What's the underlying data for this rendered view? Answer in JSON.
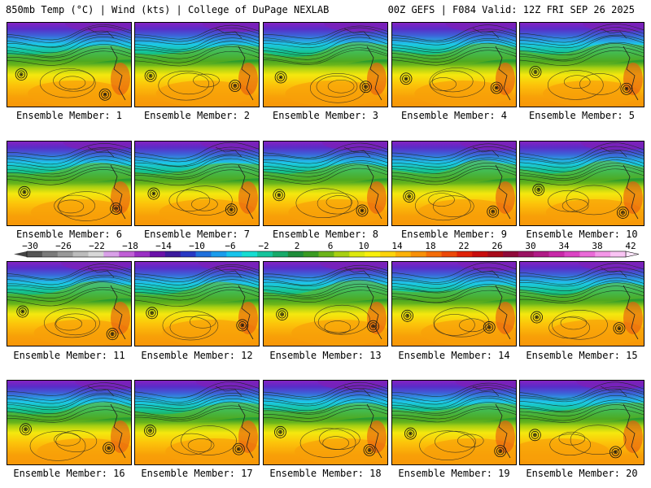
{
  "header": {
    "left": "850mb Temp (°C) | Wind (kts) | College of DuPage NEXLAB",
    "right": "00Z GEFS | F084 Valid: 12Z FRI SEP 26 2025"
  },
  "panels": [
    {
      "label": "Ensemble Member: 1"
    },
    {
      "label": "Ensemble Member: 2"
    },
    {
      "label": "Ensemble Member: 3"
    },
    {
      "label": "Ensemble Member: 4"
    },
    {
      "label": "Ensemble Member: 5"
    },
    {
      "label": "Ensemble Member: 6"
    },
    {
      "label": "Ensemble Member: 7"
    },
    {
      "label": "Ensemble Member: 8"
    },
    {
      "label": "Ensemble Member: 9"
    },
    {
      "label": "Ensemble Member: 10"
    },
    {
      "label": "Ensemble Member: 11"
    },
    {
      "label": "Ensemble Member: 12"
    },
    {
      "label": "Ensemble Member: 13"
    },
    {
      "label": "Ensemble Member: 14"
    },
    {
      "label": "Ensemble Member: 15"
    },
    {
      "label": "Ensemble Member: 16"
    },
    {
      "label": "Ensemble Member: 17"
    },
    {
      "label": "Ensemble Member: 18"
    },
    {
      "label": "Ensemble Member: 19"
    },
    {
      "label": "Ensemble Member: 20"
    }
  ],
  "colorbar": {
    "labels": [
      "−30",
      "−26",
      "−22",
      "−18",
      "−14",
      "−10",
      "−6",
      "−2",
      "2",
      "6",
      "10",
      "14",
      "18",
      "22",
      "26",
      "30",
      "34",
      "38",
      "42"
    ],
    "colors": [
      "#555555",
      "#7a7a7a",
      "#999999",
      "#bcbcbc",
      "#d8d8d8",
      "#d9a0e8",
      "#c05fd6",
      "#9a2fc4",
      "#6a10a8",
      "#3c1a9c",
      "#2838c4",
      "#1f6fdc",
      "#1a9cec",
      "#17c4ec",
      "#15ddd2",
      "#14c49c",
      "#17aa6a",
      "#1e8c3a",
      "#3a9a22",
      "#6cb419",
      "#a8d012",
      "#dde80e",
      "#f8f00b",
      "#fcd40a",
      "#fcb208",
      "#f89008",
      "#f46c08",
      "#ec4808",
      "#e02208",
      "#c80d0d",
      "#a80a1a",
      "#900a3a",
      "#9a1262",
      "#b01a86",
      "#c828a8",
      "#dc44c4",
      "#ea6ad8",
      "#f496e8",
      "#fac4f4"
    ]
  }
}
